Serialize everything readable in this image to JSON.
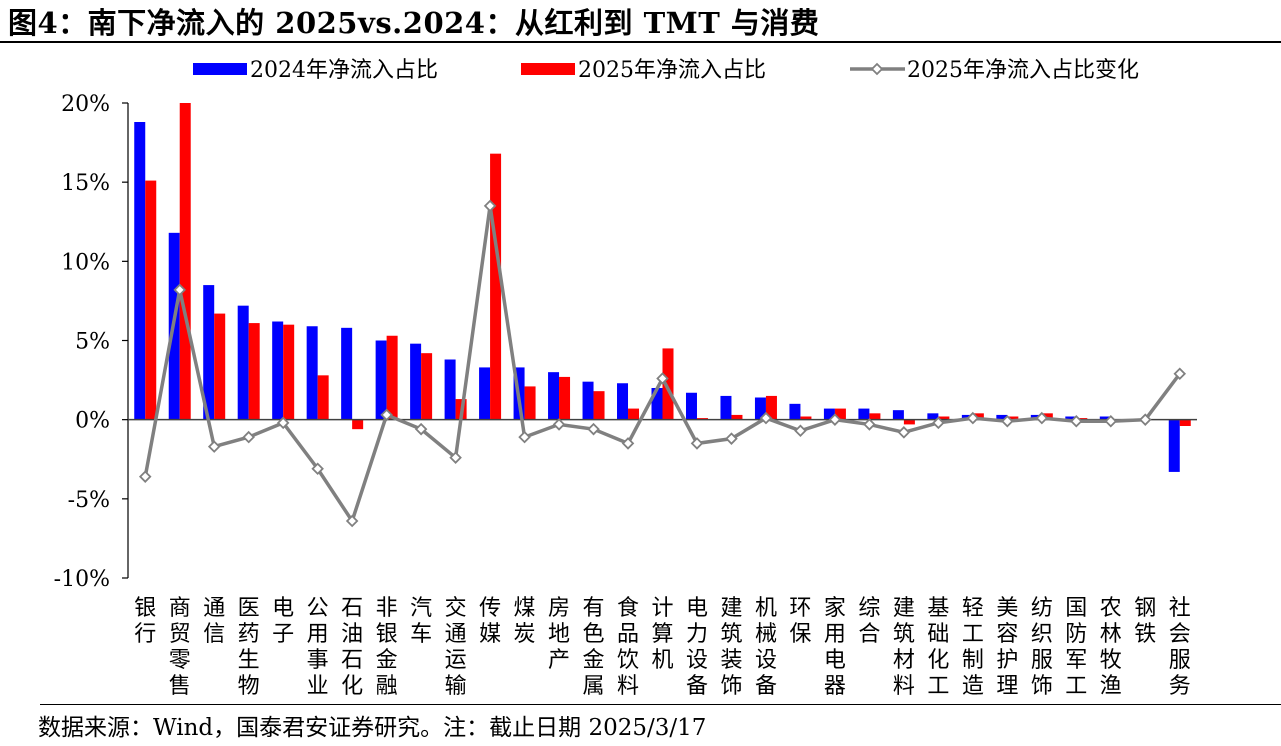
{
  "title": "图4：南下净流入的 2025vs.2024：从红利到 TMT 与消费",
  "source": "数据来源：Wind，国泰君安证券研究。注：截止日期 2025/3/17",
  "chart_data": {
    "type": "bar",
    "categories": [
      "银行",
      "商贸零售",
      "通信",
      "医药生物",
      "电子",
      "公用事业",
      "石油石化",
      "非银金融",
      "汽车",
      "交通运输",
      "传媒",
      "煤炭",
      "房地产",
      "有色金属",
      "食品饮料",
      "计算机",
      "电力设备",
      "建筑装饰",
      "机械设备",
      "环保",
      "家用电器",
      "综合",
      "建筑材料",
      "基础化工",
      "轻工制造",
      "美容护理",
      "纺织服饰",
      "国防军工",
      "农林牧渔",
      "钢铁",
      "社会服务"
    ],
    "series": [
      {
        "name": "2024年净流入占比",
        "kind": "bar",
        "color": "#0000ff",
        "values": [
          18.8,
          11.8,
          8.5,
          7.2,
          6.2,
          5.9,
          5.8,
          5.0,
          4.8,
          3.8,
          3.3,
          3.3,
          3.0,
          2.4,
          2.3,
          2.0,
          1.7,
          1.5,
          1.4,
          1.0,
          0.7,
          0.7,
          0.6,
          0.4,
          0.3,
          0.3,
          0.3,
          0.2,
          0.2,
          0.0,
          -3.3
        ]
      },
      {
        "name": "2025年净流入占比",
        "kind": "bar",
        "color": "#ff0000",
        "values": [
          15.1,
          20.0,
          6.7,
          6.1,
          6.0,
          2.8,
          -0.6,
          5.3,
          4.2,
          1.3,
          16.8,
          2.1,
          2.7,
          1.8,
          0.7,
          4.5,
          0.1,
          0.3,
          1.5,
          0.2,
          0.7,
          0.4,
          -0.3,
          0.2,
          0.4,
          0.2,
          0.4,
          0.1,
          0.0,
          0.0,
          -0.4
        ]
      },
      {
        "name": "2025年净流入占比变化",
        "kind": "line",
        "color": "#808080",
        "values": [
          -3.6,
          8.2,
          -1.7,
          -1.1,
          -0.2,
          -3.1,
          -6.4,
          0.3,
          -0.6,
          -2.4,
          13.5,
          -1.1,
          -0.3,
          -0.6,
          -1.5,
          2.6,
          -1.5,
          -1.2,
          0.1,
          -0.7,
          0.0,
          -0.3,
          -0.8,
          -0.2,
          0.1,
          -0.1,
          0.1,
          -0.1,
          -0.1,
          0.0,
          2.9
        ]
      }
    ],
    "y_ticks": [
      "20%",
      "15%",
      "10%",
      "5%",
      "0%",
      "-5%",
      "-10%"
    ],
    "ylim": [
      -10,
      20
    ],
    "grid": false,
    "legend_position": "top"
  }
}
